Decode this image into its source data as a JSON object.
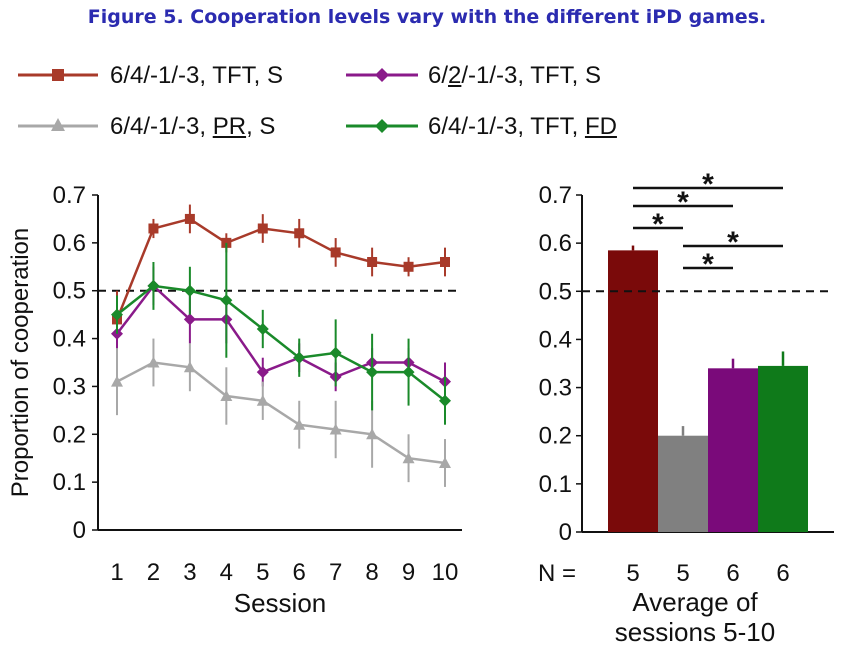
{
  "figure_title": "Figure 5. Cooperation levels vary with the different iPD games.",
  "legend": [
    {
      "pre": "6/4/-1/-3, TFT, S",
      "u": "",
      "post": "",
      "color": "#a83a2a",
      "marker": "square"
    },
    {
      "pre": "6/",
      "u": "2",
      "post": "/-1/-3, TFT, S",
      "color": "#8a1a8a",
      "marker": "diamond"
    },
    {
      "pre": "6/4/-1/-3, ",
      "u": "PR",
      "post": ", S",
      "color": "#a8a8a8",
      "marker": "triangle"
    },
    {
      "pre": "6/4/-1/-3, TFT, ",
      "u": "FD",
      "post": "",
      "color": "#1a8a2a",
      "marker": "diamond"
    }
  ],
  "chart_data": [
    {
      "type": "line",
      "xlabel": "Session",
      "ylabel": "Proportion of cooperation",
      "x": [
        1,
        2,
        3,
        4,
        5,
        6,
        7,
        8,
        9,
        10
      ],
      "ylim": [
        0,
        0.7
      ],
      "yticks": [
        "0",
        "0.1",
        "0.2",
        "0.3",
        "0.4",
        "0.5",
        "0.6",
        "0.7"
      ],
      "reference_line": 0.5,
      "series": [
        {
          "name": "6/4/-1/-3, TFT, S",
          "color": "#a83a2a",
          "values": [
            0.44,
            0.63,
            0.65,
            0.6,
            0.63,
            0.62,
            0.58,
            0.56,
            0.55,
            0.56
          ],
          "err": [
            0.06,
            0.02,
            0.03,
            0.02,
            0.03,
            0.03,
            0.03,
            0.03,
            0.02,
            0.03
          ]
        },
        {
          "name": "6/2/-1/-3, TFT, S",
          "color": "#8a1a8a",
          "values": [
            0.41,
            0.51,
            0.44,
            0.44,
            0.33,
            0.36,
            0.32,
            0.35,
            0.35,
            0.31
          ],
          "err": [
            0.04,
            0.04,
            0.05,
            0.05,
            0.03,
            0.03,
            0.03,
            0.03,
            0.03,
            0.04
          ]
        },
        {
          "name": "6/4/-1/-3, PR, S",
          "color": "#a8a8a8",
          "values": [
            0.31,
            0.35,
            0.34,
            0.28,
            0.27,
            0.22,
            0.21,
            0.2,
            0.15,
            0.14
          ],
          "err": [
            0.07,
            0.05,
            0.05,
            0.06,
            0.04,
            0.05,
            0.06,
            0.07,
            0.05,
            0.05
          ]
        },
        {
          "name": "6/4/-1/-3, TFT, FD",
          "color": "#1a8a2a",
          "values": [
            0.45,
            0.51,
            0.5,
            0.48,
            0.42,
            0.36,
            0.37,
            0.33,
            0.33,
            0.27
          ],
          "err": [
            0.04,
            0.05,
            0.05,
            0.12,
            0.04,
            0.04,
            0.07,
            0.08,
            0.07,
            0.05
          ]
        }
      ]
    },
    {
      "type": "bar",
      "xlabel_lines": [
        "Average of",
        "sessions 5-10"
      ],
      "n_label": "N =",
      "categories": [
        "5",
        "5",
        "6",
        "6"
      ],
      "ylim": [
        0,
        0.7
      ],
      "yticks": [
        "0",
        "0.1",
        "0.2",
        "0.3",
        "0.4",
        "0.5",
        "0.6",
        "0.7"
      ],
      "reference_line": 0.5,
      "values": [
        0.585,
        0.2,
        0.34,
        0.345
      ],
      "err": [
        0.01,
        0.02,
        0.02,
        0.03
      ],
      "colors": [
        "#7a0a0a",
        "#808080",
        "#7a0a7a",
        "#0f7a1a"
      ],
      "significance": [
        {
          "from": 0,
          "to": 3,
          "label": "*"
        },
        {
          "from": 0,
          "to": 2,
          "label": "*"
        },
        {
          "from": 0,
          "to": 1,
          "label": "*"
        },
        {
          "from": 1,
          "to": 3,
          "label": "*"
        },
        {
          "from": 1,
          "to": 2,
          "label": "*"
        }
      ]
    }
  ]
}
